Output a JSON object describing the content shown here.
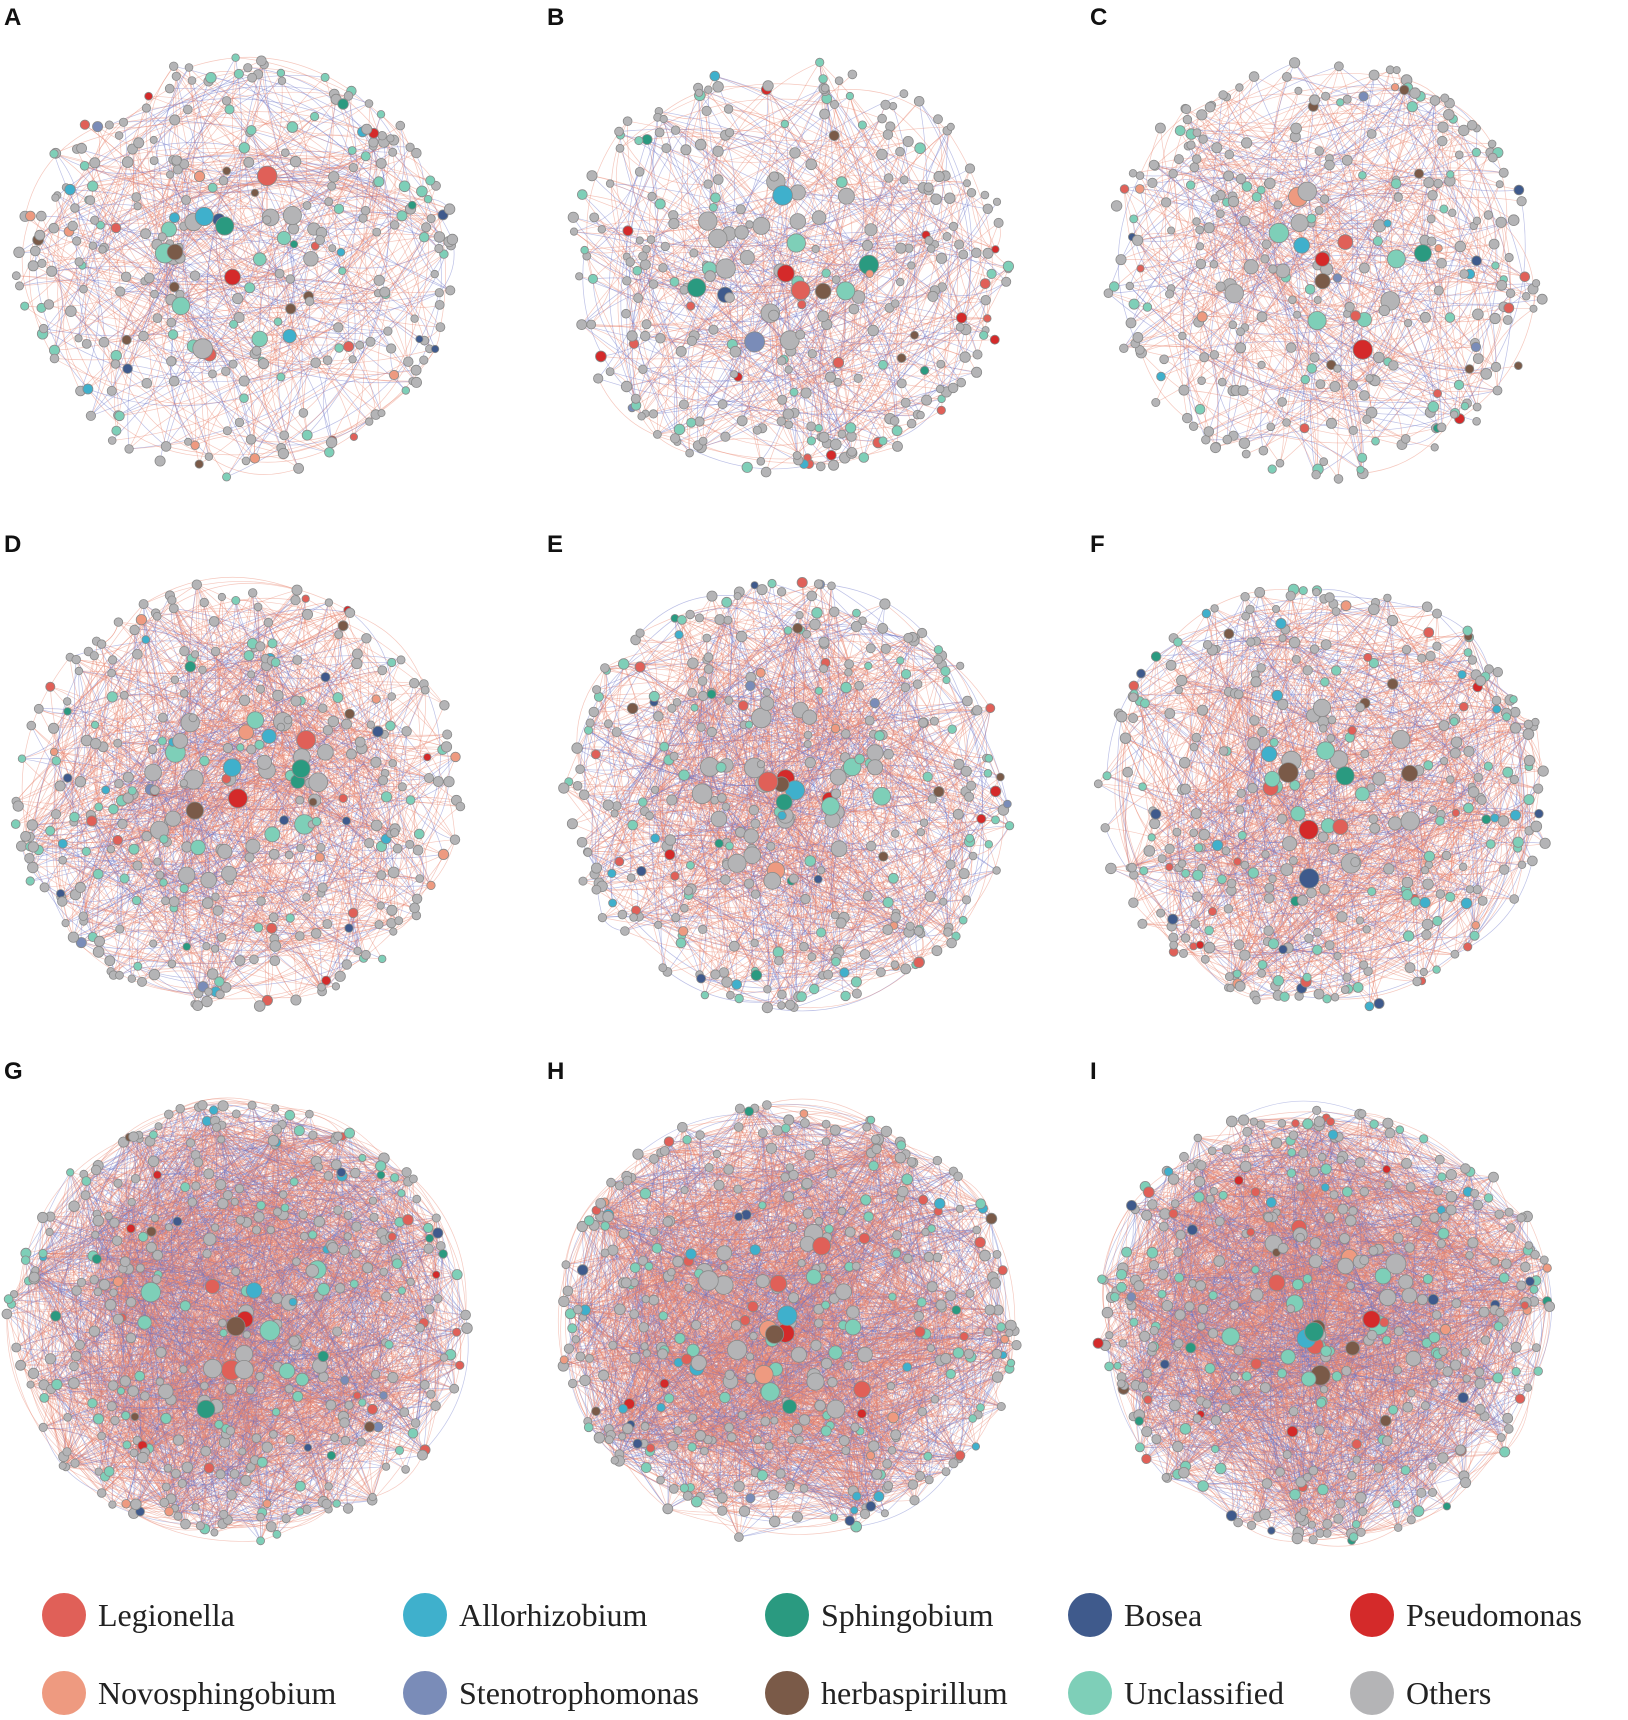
{
  "panels": [
    {
      "letter": "A",
      "density": "low"
    },
    {
      "letter": "B",
      "density": "low"
    },
    {
      "letter": "C",
      "density": "low"
    },
    {
      "letter": "D",
      "density": "medium"
    },
    {
      "letter": "E",
      "density": "medium"
    },
    {
      "letter": "F",
      "density": "medium"
    },
    {
      "letter": "G",
      "density": "high"
    },
    {
      "letter": "H",
      "density": "high"
    },
    {
      "letter": "I",
      "density": "high"
    }
  ],
  "legend": [
    {
      "label": "Legionella",
      "color": "#e06058"
    },
    {
      "label": "Allorhizobium",
      "color": "#3fb0cc"
    },
    {
      "label": "Sphingobium",
      "color": "#2a9a80"
    },
    {
      "label": "Bosea",
      "color": "#3f5a8c"
    },
    {
      "label": "Pseudomonas",
      "color": "#d42a2a"
    },
    {
      "label": "Novosphingobium",
      "color": "#ee9a80"
    },
    {
      "label": "Stenotrophomonas",
      "color": "#7a8cb8"
    },
    {
      "label": "herbaspirillum",
      "color": "#7a5a48"
    },
    {
      "label": "Unclassified",
      "color": "#7ecfb8"
    },
    {
      "label": "Others",
      "color": "#b4b4b6"
    }
  ],
  "edge_colors": {
    "positive": "#e8846e",
    "negative": "#6a74c8"
  }
}
